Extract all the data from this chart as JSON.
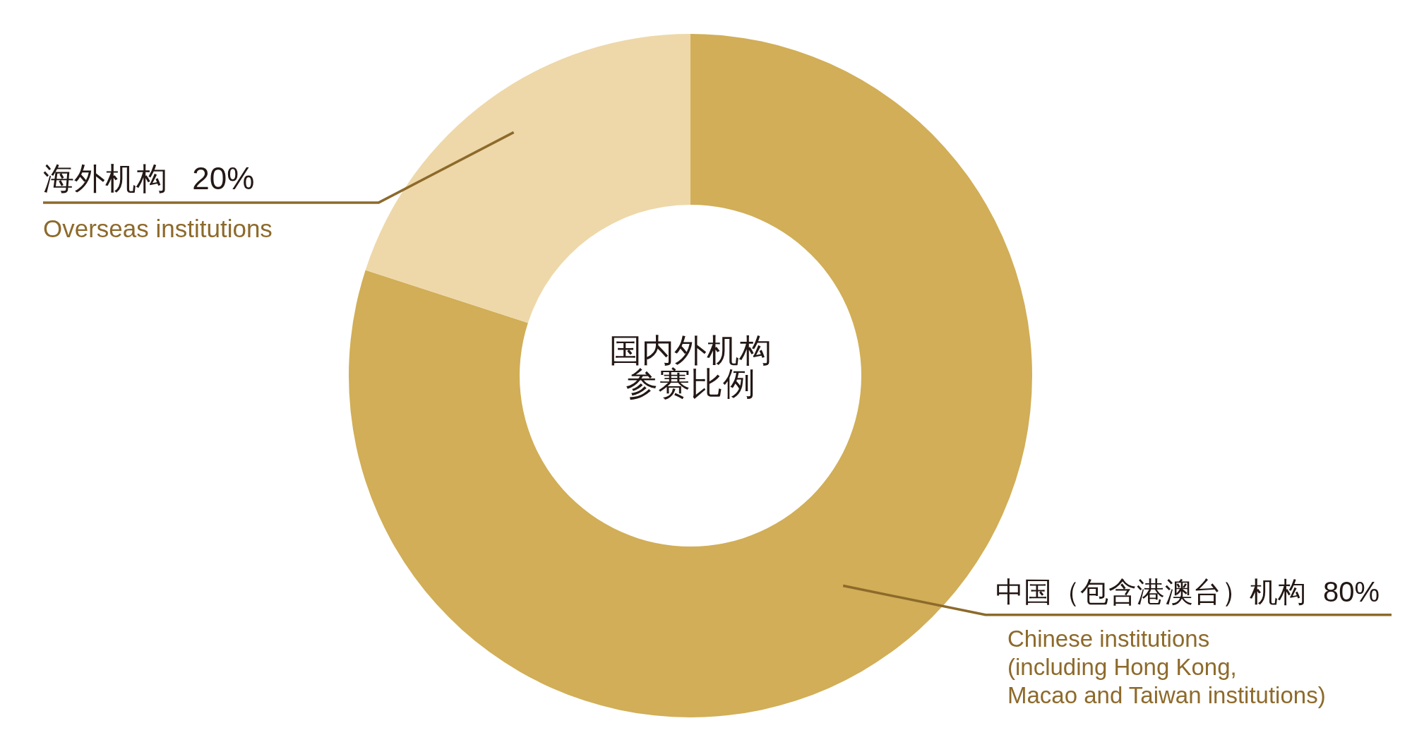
{
  "chart_data": {
    "type": "donut",
    "title": "国内外机构参赛比例",
    "categories": [
      "中国（包含港澳台）机构",
      "海外机构"
    ],
    "values": [
      80,
      20
    ],
    "colors": [
      "#d1ae57",
      "#eed8a9"
    ],
    "value_labels": [
      "80%",
      "20%"
    ],
    "annotations": [
      "Chinese institutions\n(including Hong Kong,\nMacao and Taiwan institutions)",
      "Overseas institutions"
    ]
  }
}
